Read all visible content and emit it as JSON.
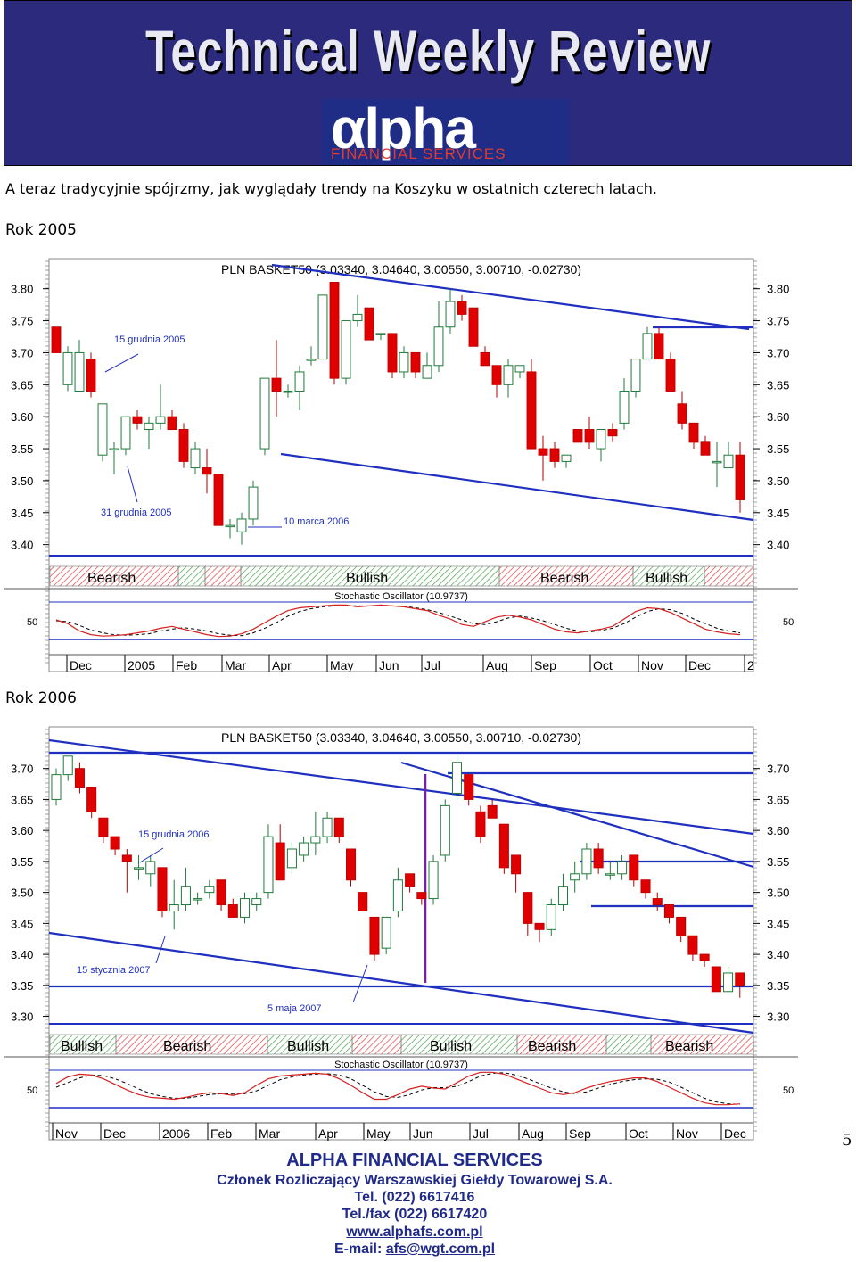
{
  "header": {
    "title": "Technical Weekly Review",
    "logo_word": "αlpha",
    "logo_sub": "FINANCIAL SERVICES"
  },
  "intro_text": "A teraz tradycyjnie spójrzmy, jak wyglądały trendy na Koszyku w ostatnich czterech latach.",
  "chart_data": [
    {
      "type": "candlestick",
      "section_label": "Rok 2005",
      "title": "PLN BASKET50 (3.03340, 3.04640, 3.00550, 3.00710, -0.02730)",
      "ylim": [
        3.38,
        3.84
      ],
      "yticks": [
        3.8,
        3.75,
        3.7,
        3.65,
        3.6,
        3.55,
        3.5,
        3.45,
        3.4
      ],
      "x_labels": [
        "Dec",
        "2005",
        "Feb",
        "Mar",
        "Apr",
        "May",
        "Jun",
        "Jul",
        "Aug",
        "Sep",
        "Oct",
        "Nov",
        "Dec",
        "2"
      ],
      "annotations": [
        "15 grudnia 2005",
        "31 grudnia 2005",
        "10 marca 2006"
      ],
      "sentiment_bands": [
        "Bearish",
        "Bullish",
        "Bearish",
        "Bullish"
      ],
      "oscillator_title": "Stochastic Oscillator (10.9737)",
      "oscillator_level": "50",
      "candles": [
        {
          "o": 3.74,
          "h": 3.74,
          "l": 3.7,
          "c": 3.7
        },
        {
          "o": 3.65,
          "h": 3.71,
          "l": 3.64,
          "c": 3.7
        },
        {
          "o": 3.64,
          "h": 3.72,
          "l": 3.64,
          "c": 3.7
        },
        {
          "o": 3.69,
          "h": 3.7,
          "l": 3.63,
          "c": 3.64
        },
        {
          "o": 3.54,
          "h": 3.62,
          "l": 3.53,
          "c": 3.62
        },
        {
          "o": 3.55,
          "h": 3.56,
          "l": 3.51,
          "c": 3.55
        },
        {
          "o": 3.55,
          "h": 3.6,
          "l": 3.54,
          "c": 3.6
        },
        {
          "o": 3.6,
          "h": 3.61,
          "l": 3.58,
          "c": 3.59
        },
        {
          "o": 3.58,
          "h": 3.6,
          "l": 3.55,
          "c": 3.59
        },
        {
          "o": 3.59,
          "h": 3.65,
          "l": 3.58,
          "c": 3.6
        },
        {
          "o": 3.6,
          "h": 3.61,
          "l": 3.58,
          "c": 3.58
        },
        {
          "o": 3.58,
          "h": 3.59,
          "l": 3.52,
          "c": 3.53
        },
        {
          "o": 3.52,
          "h": 3.56,
          "l": 3.51,
          "c": 3.55
        },
        {
          "o": 3.52,
          "h": 3.55,
          "l": 3.48,
          "c": 3.51
        },
        {
          "o": 3.51,
          "h": 3.51,
          "l": 3.43,
          "c": 3.43
        },
        {
          "o": 3.43,
          "h": 3.44,
          "l": 3.41,
          "c": 3.43
        },
        {
          "o": 3.42,
          "h": 3.45,
          "l": 3.4,
          "c": 3.44
        },
        {
          "o": 3.44,
          "h": 3.5,
          "l": 3.43,
          "c": 3.49
        },
        {
          "o": 3.55,
          "h": 3.66,
          "l": 3.54,
          "c": 3.66
        },
        {
          "o": 3.66,
          "h": 3.72,
          "l": 3.6,
          "c": 3.64
        },
        {
          "o": 3.64,
          "h": 3.65,
          "l": 3.63,
          "c": 3.64
        },
        {
          "o": 3.64,
          "h": 3.68,
          "l": 3.61,
          "c": 3.67
        },
        {
          "o": 3.69,
          "h": 3.71,
          "l": 3.68,
          "c": 3.69
        },
        {
          "o": 3.69,
          "h": 3.79,
          "l": 3.69,
          "c": 3.79
        },
        {
          "o": 3.81,
          "h": 3.81,
          "l": 3.65,
          "c": 3.66
        },
        {
          "o": 3.66,
          "h": 3.75,
          "l": 3.65,
          "c": 3.75
        },
        {
          "o": 3.75,
          "h": 3.79,
          "l": 3.74,
          "c": 3.76
        },
        {
          "o": 3.77,
          "h": 3.77,
          "l": 3.72,
          "c": 3.72
        },
        {
          "o": 3.73,
          "h": 3.73,
          "l": 3.72,
          "c": 3.73
        },
        {
          "o": 3.73,
          "h": 3.73,
          "l": 3.66,
          "c": 3.67
        },
        {
          "o": 3.67,
          "h": 3.71,
          "l": 3.66,
          "c": 3.7
        },
        {
          "o": 3.7,
          "h": 3.7,
          "l": 3.66,
          "c": 3.67
        },
        {
          "o": 3.66,
          "h": 3.7,
          "l": 3.66,
          "c": 3.68
        },
        {
          "o": 3.68,
          "h": 3.78,
          "l": 3.67,
          "c": 3.74
        },
        {
          "o": 3.74,
          "h": 3.8,
          "l": 3.73,
          "c": 3.78
        },
        {
          "o": 3.78,
          "h": 3.79,
          "l": 3.75,
          "c": 3.76
        },
        {
          "o": 3.77,
          "h": 3.77,
          "l": 3.71,
          "c": 3.71
        },
        {
          "o": 3.7,
          "h": 3.71,
          "l": 3.68,
          "c": 3.68
        },
        {
          "o": 3.68,
          "h": 3.68,
          "l": 3.63,
          "c": 3.65
        },
        {
          "o": 3.65,
          "h": 3.69,
          "l": 3.63,
          "c": 3.68
        },
        {
          "o": 3.67,
          "h": 3.68,
          "l": 3.66,
          "c": 3.68
        },
        {
          "o": 3.67,
          "h": 3.69,
          "l": 3.55,
          "c": 3.55
        },
        {
          "o": 3.55,
          "h": 3.57,
          "l": 3.5,
          "c": 3.54
        },
        {
          "o": 3.55,
          "h": 3.56,
          "l": 3.52,
          "c": 3.53
        },
        {
          "o": 3.53,
          "h": 3.54,
          "l": 3.52,
          "c": 3.54
        },
        {
          "o": 3.58,
          "h": 3.58,
          "l": 3.56,
          "c": 3.56
        },
        {
          "o": 3.58,
          "h": 3.6,
          "l": 3.55,
          "c": 3.56
        },
        {
          "o": 3.55,
          "h": 3.58,
          "l": 3.53,
          "c": 3.58
        },
        {
          "o": 3.58,
          "h": 3.59,
          "l": 3.56,
          "c": 3.57
        },
        {
          "o": 3.59,
          "h": 3.66,
          "l": 3.58,
          "c": 3.64
        },
        {
          "o": 3.64,
          "h": 3.69,
          "l": 3.63,
          "c": 3.69
        },
        {
          "o": 3.69,
          "h": 3.74,
          "l": 3.69,
          "c": 3.73
        },
        {
          "o": 3.73,
          "h": 3.74,
          "l": 3.69,
          "c": 3.69
        },
        {
          "o": 3.69,
          "h": 3.7,
          "l": 3.64,
          "c": 3.64
        },
        {
          "o": 3.62,
          "h": 3.64,
          "l": 3.58,
          "c": 3.59
        },
        {
          "o": 3.59,
          "h": 3.59,
          "l": 3.55,
          "c": 3.56
        },
        {
          "o": 3.56,
          "h": 3.57,
          "l": 3.54,
          "c": 3.54
        },
        {
          "o": 3.53,
          "h": 3.56,
          "l": 3.49,
          "c": 3.53
        },
        {
          "o": 3.52,
          "h": 3.56,
          "l": 3.52,
          "c": 3.54
        },
        {
          "o": 3.54,
          "h": 3.56,
          "l": 3.45,
          "c": 3.47
        }
      ],
      "stoch_k": [
        50,
        42,
        26,
        18,
        15,
        16,
        18,
        22,
        26,
        32,
        36,
        30,
        24,
        18,
        14,
        15,
        20,
        30,
        44,
        58,
        70,
        76,
        78,
        80,
        82,
        82,
        78,
        80,
        82,
        80,
        78,
        74,
        70,
        60,
        52,
        40,
        36,
        46,
        56,
        60,
        56,
        50,
        40,
        30,
        24,
        22,
        26,
        30,
        36,
        52,
        68,
        76,
        74,
        66,
        54,
        42,
        30,
        24,
        20,
        18
      ],
      "stoch_d": [
        48,
        46,
        38,
        28,
        22,
        18,
        17,
        18,
        20,
        26,
        30,
        33,
        30,
        26,
        20,
        17,
        16,
        22,
        32,
        44,
        58,
        68,
        74,
        78,
        80,
        81,
        80,
        80,
        81,
        80,
        79,
        76,
        72,
        66,
        58,
        50,
        42,
        40,
        46,
        54,
        58,
        54,
        48,
        40,
        32,
        26,
        24,
        27,
        32,
        42,
        56,
        68,
        74,
        72,
        64,
        52,
        42,
        32,
        26,
        22
      ]
    },
    {
      "type": "candlestick",
      "section_label": "Rok 2006",
      "title": "PLN BASKET50 (3.03340, 3.04640, 3.00550, 3.00710, -0.02730)",
      "ylim": [
        3.285,
        3.76
      ],
      "yticks": [
        3.7,
        3.65,
        3.6,
        3.55,
        3.5,
        3.45,
        3.4,
        3.35,
        3.3
      ],
      "x_labels": [
        "Nov",
        "Dec",
        "2006",
        "Feb",
        "Mar",
        "Apr",
        "May",
        "Jun",
        "Jul",
        "Aug",
        "Sep",
        "Oct",
        "Nov",
        "Dec"
      ],
      "annotations": [
        "15 grudnia 2006",
        "15 stycznia 2007",
        "5 maja 2007"
      ],
      "sentiment_bands": [
        "Bullish",
        "Bearish",
        "Bullish",
        "Bullish",
        "Bearish",
        "Bearish"
      ],
      "oscillator_title": "Stochastic Oscillator (10.9737)",
      "oscillator_level": "50",
      "candles": [
        {
          "o": 3.65,
          "h": 3.7,
          "l": 3.64,
          "c": 3.69
        },
        {
          "o": 3.69,
          "h": 3.72,
          "l": 3.68,
          "c": 3.72
        },
        {
          "o": 3.7,
          "h": 3.71,
          "l": 3.66,
          "c": 3.67
        },
        {
          "o": 3.67,
          "h": 3.67,
          "l": 3.62,
          "c": 3.63
        },
        {
          "o": 3.62,
          "h": 3.62,
          "l": 3.58,
          "c": 3.59
        },
        {
          "o": 3.59,
          "h": 3.59,
          "l": 3.56,
          "c": 3.57
        },
        {
          "o": 3.56,
          "h": 3.57,
          "l": 3.5,
          "c": 3.55
        },
        {
          "o": 3.54,
          "h": 3.56,
          "l": 3.52,
          "c": 3.54
        },
        {
          "o": 3.53,
          "h": 3.56,
          "l": 3.51,
          "c": 3.55
        },
        {
          "o": 3.54,
          "h": 3.54,
          "l": 3.46,
          "c": 3.47
        },
        {
          "o": 3.47,
          "h": 3.52,
          "l": 3.44,
          "c": 3.48
        },
        {
          "o": 3.48,
          "h": 3.54,
          "l": 3.47,
          "c": 3.51
        },
        {
          "o": 3.49,
          "h": 3.5,
          "l": 3.48,
          "c": 3.49
        },
        {
          "o": 3.5,
          "h": 3.52,
          "l": 3.49,
          "c": 3.51
        },
        {
          "o": 3.52,
          "h": 3.52,
          "l": 3.47,
          "c": 3.48
        },
        {
          "o": 3.48,
          "h": 3.49,
          "l": 3.46,
          "c": 3.46
        },
        {
          "o": 3.46,
          "h": 3.5,
          "l": 3.45,
          "c": 3.49
        },
        {
          "o": 3.48,
          "h": 3.5,
          "l": 3.47,
          "c": 3.49
        },
        {
          "o": 3.5,
          "h": 3.61,
          "l": 3.49,
          "c": 3.59
        },
        {
          "o": 3.58,
          "h": 3.61,
          "l": 3.52,
          "c": 3.52
        },
        {
          "o": 3.54,
          "h": 3.58,
          "l": 3.53,
          "c": 3.57
        },
        {
          "o": 3.56,
          "h": 3.59,
          "l": 3.55,
          "c": 3.58
        },
        {
          "o": 3.58,
          "h": 3.63,
          "l": 3.56,
          "c": 3.59
        },
        {
          "o": 3.59,
          "h": 3.63,
          "l": 3.58,
          "c": 3.62
        },
        {
          "o": 3.62,
          "h": 3.62,
          "l": 3.58,
          "c": 3.59
        },
        {
          "o": 3.57,
          "h": 3.57,
          "l": 3.51,
          "c": 3.52
        },
        {
          "o": 3.5,
          "h": 3.5,
          "l": 3.47,
          "c": 3.47
        },
        {
          "o": 3.46,
          "h": 3.46,
          "l": 3.39,
          "c": 3.4
        },
        {
          "o": 3.41,
          "h": 3.46,
          "l": 3.4,
          "c": 3.46
        },
        {
          "o": 3.47,
          "h": 3.54,
          "l": 3.46,
          "c": 3.52
        },
        {
          "o": 3.53,
          "h": 3.53,
          "l": 3.5,
          "c": 3.51
        },
        {
          "o": 3.5,
          "h": 3.5,
          "l": 3.48,
          "c": 3.49
        },
        {
          "o": 3.49,
          "h": 3.56,
          "l": 3.48,
          "c": 3.55
        },
        {
          "o": 3.56,
          "h": 3.65,
          "l": 3.55,
          "c": 3.64
        },
        {
          "o": 3.66,
          "h": 3.72,
          "l": 3.65,
          "c": 3.71
        },
        {
          "o": 3.69,
          "h": 3.69,
          "l": 3.64,
          "c": 3.65
        },
        {
          "o": 3.63,
          "h": 3.64,
          "l": 3.58,
          "c": 3.59
        },
        {
          "o": 3.64,
          "h": 3.65,
          "l": 3.62,
          "c": 3.62
        },
        {
          "o": 3.61,
          "h": 3.61,
          "l": 3.53,
          "c": 3.54
        },
        {
          "o": 3.56,
          "h": 3.56,
          "l": 3.5,
          "c": 3.53
        },
        {
          "o": 3.5,
          "h": 3.5,
          "l": 3.43,
          "c": 3.45
        },
        {
          "o": 3.45,
          "h": 3.45,
          "l": 3.42,
          "c": 3.44
        },
        {
          "o": 3.44,
          "h": 3.49,
          "l": 3.43,
          "c": 3.48
        },
        {
          "o": 3.48,
          "h": 3.53,
          "l": 3.47,
          "c": 3.51
        },
        {
          "o": 3.52,
          "h": 3.55,
          "l": 3.5,
          "c": 3.53
        },
        {
          "o": 3.53,
          "h": 3.58,
          "l": 3.52,
          "c": 3.57
        },
        {
          "o": 3.57,
          "h": 3.58,
          "l": 3.53,
          "c": 3.54
        },
        {
          "o": 3.53,
          "h": 3.55,
          "l": 3.52,
          "c": 3.53
        },
        {
          "o": 3.53,
          "h": 3.56,
          "l": 3.52,
          "c": 3.55
        },
        {
          "o": 3.56,
          "h": 3.56,
          "l": 3.51,
          "c": 3.52
        },
        {
          "o": 3.52,
          "h": 3.52,
          "l": 3.49,
          "c": 3.5
        },
        {
          "o": 3.49,
          "h": 3.5,
          "l": 3.47,
          "c": 3.48
        },
        {
          "o": 3.48,
          "h": 3.48,
          "l": 3.45,
          "c": 3.46
        },
        {
          "o": 3.46,
          "h": 3.46,
          "l": 3.42,
          "c": 3.43
        },
        {
          "o": 3.43,
          "h": 3.43,
          "l": 3.39,
          "c": 3.4
        },
        {
          "o": 3.4,
          "h": 3.4,
          "l": 3.38,
          "c": 3.39
        },
        {
          "o": 3.38,
          "h": 3.38,
          "l": 3.34,
          "c": 3.34
        },
        {
          "o": 3.34,
          "h": 3.38,
          "l": 3.34,
          "c": 3.37
        },
        {
          "o": 3.37,
          "h": 3.37,
          "l": 3.33,
          "c": 3.35
        }
      ],
      "stoch_k": [
        60,
        74,
        80,
        78,
        70,
        58,
        46,
        36,
        30,
        28,
        26,
        30,
        36,
        40,
        38,
        34,
        40,
        56,
        70,
        76,
        78,
        80,
        82,
        80,
        70,
        56,
        40,
        26,
        26,
        36,
        48,
        54,
        50,
        48,
        62,
        76,
        84,
        84,
        80,
        70,
        60,
        50,
        40,
        36,
        40,
        50,
        58,
        64,
        68,
        72,
        72,
        64,
        52,
        40,
        28,
        18,
        14,
        14,
        16
      ],
      "stoch_d": [
        52,
        62,
        72,
        78,
        77,
        70,
        60,
        48,
        38,
        32,
        28,
        28,
        32,
        36,
        38,
        37,
        38,
        44,
        56,
        68,
        74,
        78,
        80,
        81,
        78,
        70,
        56,
        42,
        32,
        30,
        36,
        46,
        51,
        51,
        54,
        64,
        76,
        82,
        83,
        78,
        70,
        60,
        50,
        42,
        38,
        42,
        50,
        58,
        64,
        68,
        70,
        69,
        63,
        52,
        40,
        28,
        20,
        16,
        15
      ]
    }
  ],
  "page_number": "5",
  "footer": {
    "company": "ALPHA FINANCIAL SERVICES",
    "member": "Członek Rozliczający Warszawskiej Giełdy Towarowej S.A.",
    "tel": "Tel. (022) 6617416",
    "telfax": "Tel./fax (022) 6617420",
    "web": "www.alphafs.com.pl",
    "email_label": "E-mail: ",
    "email": "afs@wgt.com.pl"
  },
  "colors": {
    "header_bg": "#2b2a7c",
    "up_candle": "#1a7a2a",
    "down_candle": "#e00000",
    "trend_line": "#1f2fbf",
    "stoch_line": "#d62020",
    "logo_accent": "#e23a2e"
  }
}
